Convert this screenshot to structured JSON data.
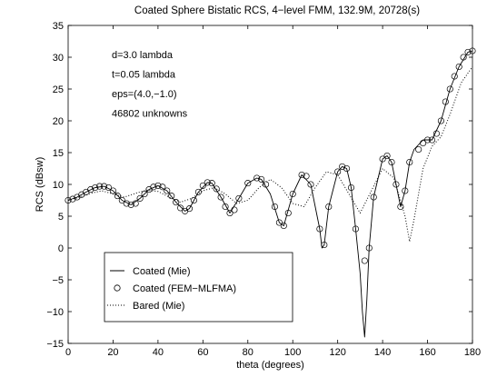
{
  "chart_data": {
    "type": "line",
    "title": "Coated Sphere Bistatic RCS,  4−level FMM, 132.9M, 20728(s)",
    "xlabel": "theta (degrees)",
    "ylabel": "RCS (dBsw)",
    "xlim": [
      0,
      180
    ],
    "ylim": [
      -15,
      35
    ],
    "x_ticks": [
      0,
      20,
      40,
      60,
      80,
      100,
      120,
      140,
      160,
      180
    ],
    "y_ticks": [
      -15,
      -10,
      -5,
      0,
      5,
      10,
      15,
      20,
      25,
      30,
      35
    ],
    "x_tick_labels": [
      "0",
      "20",
      "40",
      "60",
      "80",
      "100",
      "120",
      "140",
      "160",
      "180"
    ],
    "y_tick_labels": [
      "−15",
      "−10",
      "−5",
      "0",
      "5",
      "10",
      "15",
      "20",
      "25",
      "30",
      "35"
    ],
    "grid": false,
    "annotations": [
      "d=3.0 lambda",
      "t=0.05 lambda",
      "eps=(4.0,−1.0)",
      "46802 unknowns"
    ],
    "legend": {
      "placement": "lower-left",
      "entries": [
        "Coated (Mie)",
        "Coated (FEM−MLFMA)",
        "Bared (Mie)"
      ]
    },
    "series": [
      {
        "name": "Coated (Mie)",
        "style": "solid",
        "x": [
          0,
          4,
          8,
          12,
          16,
          20,
          24,
          28,
          32,
          36,
          40,
          44,
          48,
          52,
          54,
          58,
          62,
          64,
          68,
          72,
          76,
          80,
          84,
          86,
          90,
          94,
          96,
          100,
          104,
          108,
          112,
          113,
          114,
          116,
          120,
          122,
          124,
          126,
          128,
          130,
          131,
          132,
          133,
          134,
          136,
          140,
          142,
          144,
          146,
          148,
          150,
          152,
          154,
          158,
          162,
          166,
          170,
          174,
          178,
          180
        ],
        "y": [
          7.5,
          8.0,
          8.8,
          9.5,
          9.7,
          9.0,
          7.5,
          6.8,
          7.8,
          9.2,
          9.8,
          9.0,
          7.2,
          5.8,
          6.2,
          8.8,
          10.3,
          10.2,
          8.0,
          5.5,
          7.8,
          10.2,
          11.0,
          10.8,
          8.5,
          4.0,
          3.5,
          8.5,
          11.5,
          10.0,
          3.0,
          0.0,
          0.5,
          6.5,
          12.0,
          12.8,
          12.5,
          9.5,
          3.0,
          -4.0,
          -10.0,
          -14.0,
          -8.0,
          0.0,
          8.0,
          14.0,
          14.5,
          13.5,
          10.0,
          6.5,
          9.0,
          13.5,
          15.5,
          17.0,
          17.0,
          20.0,
          25.0,
          28.5,
          30.8,
          31.0
        ]
      },
      {
        "name": "Coated (FEM−MLFMA)",
        "style": "circle-markers",
        "x": [
          0,
          2,
          4,
          6,
          8,
          10,
          12,
          14,
          16,
          18,
          20,
          22,
          24,
          26,
          28,
          30,
          32,
          34,
          36,
          38,
          40,
          42,
          44,
          46,
          48,
          50,
          52,
          54,
          56,
          58,
          60,
          62,
          64,
          66,
          68,
          70,
          72,
          74,
          76,
          80,
          84,
          86,
          88,
          92,
          94,
          96,
          98,
          100,
          104,
          106,
          108,
          112,
          114,
          116,
          120,
          122,
          124,
          126,
          128,
          132,
          134,
          136,
          140,
          142,
          144,
          146,
          148,
          150,
          152,
          156,
          158,
          160,
          162,
          164,
          166,
          168,
          170,
          172,
          174,
          176,
          178,
          180
        ],
        "y": [
          7.5,
          7.7,
          8.0,
          8.4,
          8.8,
          9.2,
          9.5,
          9.7,
          9.7,
          9.5,
          9.0,
          8.2,
          7.5,
          7.0,
          6.8,
          7.0,
          7.8,
          8.5,
          9.2,
          9.6,
          9.8,
          9.6,
          9.0,
          8.2,
          7.2,
          6.3,
          5.8,
          6.2,
          7.5,
          8.8,
          9.8,
          10.3,
          10.2,
          9.3,
          8.0,
          6.5,
          5.5,
          6.0,
          7.8,
          10.2,
          11.0,
          10.8,
          10.0,
          6.5,
          4.0,
          3.5,
          5.5,
          8.5,
          11.5,
          11.3,
          10.0,
          3.0,
          0.5,
          6.5,
          12.0,
          12.8,
          12.5,
          9.5,
          3.0,
          -2.0,
          0.0,
          8.0,
          14.0,
          14.5,
          13.5,
          10.0,
          6.5,
          9.0,
          13.5,
          15.5,
          16.5,
          17.0,
          17.0,
          18.0,
          20.0,
          23.0,
          25.0,
          27.0,
          28.5,
          30.0,
          30.8,
          31.0
        ]
      },
      {
        "name": "Bared (Mie)",
        "style": "dotted",
        "x": [
          0,
          5,
          10,
          15,
          20,
          25,
          30,
          35,
          40,
          45,
          50,
          55,
          60,
          65,
          70,
          75,
          80,
          85,
          90,
          95,
          100,
          105,
          110,
          115,
          120,
          125,
          130,
          135,
          140,
          145,
          150,
          152,
          154,
          158,
          162,
          166,
          170,
          175,
          180
        ],
        "y": [
          7.5,
          8.0,
          8.6,
          9.0,
          8.5,
          8.0,
          8.6,
          9.1,
          8.9,
          8.0,
          7.2,
          7.8,
          9.0,
          9.5,
          8.5,
          7.0,
          7.5,
          9.5,
          10.8,
          9.5,
          7.0,
          6.5,
          9.5,
          12.0,
          11.5,
          8.5,
          5.5,
          9.0,
          12.5,
          11.0,
          5.0,
          1.0,
          4.5,
          12.5,
          16.0,
          17.5,
          21.0,
          26.0,
          28.5
        ]
      }
    ]
  }
}
